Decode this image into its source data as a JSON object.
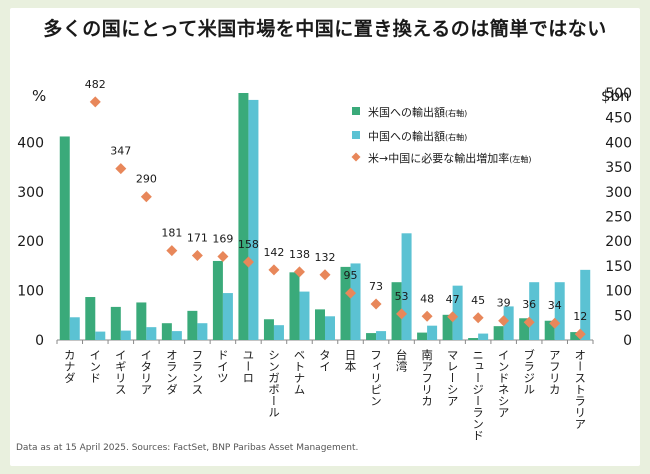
{
  "title": "多くの国にとって米国市場を中国に置き換えるのは簡単ではない",
  "source": "Data as at 15 April 2025. Sources: FactSet, BNP Paribas Asset Management.",
  "colors": {
    "us_exports": "#3aaa7a",
    "china_exports": "#5bc2d3",
    "required_growth": "#e8875a"
  },
  "chart_data": {
    "type": "bar",
    "categories": [
      "カナダ",
      "インド",
      "イギリス",
      "イタリア",
      "オランダ",
      "フランス",
      "ドイツ",
      "ユーロ",
      "シンガポール",
      "ベトナム",
      "タイ",
      "日本",
      "フィリピン",
      "台湾",
      "南アフリカ",
      "マレーシア",
      "ニュージーランド",
      "インドネシア",
      "ブラジル",
      "アフリカ",
      "オーストラリア"
    ],
    "left_axis": {
      "unit": "%",
      "ylim": [
        0,
        500
      ],
      "ticks": [
        "0",
        "100",
        "200",
        "300",
        "400"
      ]
    },
    "right_axis": {
      "unit": "$bn",
      "ylim": [
        0,
        500
      ],
      "ticks": [
        "0",
        "50",
        "100",
        "150",
        "200",
        "250",
        "300",
        "350",
        "400",
        "450",
        "500"
      ]
    },
    "series": [
      {
        "name": "米国への輸出額",
        "name_note": "(右軸)",
        "axis": "right",
        "type": "bar",
        "values": [
          412,
          87,
          67,
          76,
          34,
          59,
          160,
          500,
          42,
          137,
          62,
          148,
          14,
          117,
          15,
          51,
          4,
          28,
          44,
          39,
          16
        ]
      },
      {
        "name": "中国への輸出額",
        "name_note": "(右軸)",
        "axis": "right",
        "type": "bar",
        "values": [
          46,
          17,
          19,
          26,
          18,
          34,
          95,
          486,
          30,
          98,
          48,
          155,
          18,
          216,
          29,
          110,
          13,
          68,
          117,
          117,
          142
        ]
      },
      {
        "name": "米→中国に必要な輸出増加率",
        "name_note": "(左軸)",
        "axis": "left",
        "type": "scatter",
        "values": [
          null,
          482,
          347,
          290,
          181,
          171,
          169,
          158,
          142,
          138,
          132,
          95,
          73,
          53,
          48,
          47,
          45,
          39,
          36,
          34,
          12
        ],
        "labels": [
          "",
          "482",
          "347",
          "290",
          "181",
          "171",
          "169",
          "158",
          "142",
          "138",
          "132",
          "95",
          "73",
          "53",
          "48",
          "47",
          "45",
          "39",
          "36",
          "34",
          "12"
        ]
      }
    ],
    "legend_position": "top-right"
  }
}
